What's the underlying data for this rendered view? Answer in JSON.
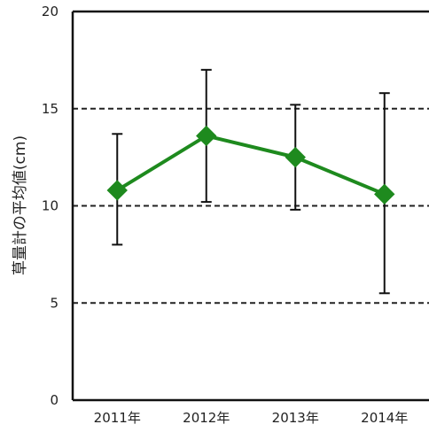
{
  "chart_data": {
    "type": "line",
    "title": "",
    "ylabel": "草量計の平均値(cm)",
    "xlabel": "",
    "categories": [
      "2011年",
      "2012年",
      "2013年",
      "2014年"
    ],
    "series": [
      {
        "values": [
          10.8,
          13.6,
          12.5,
          10.6
        ],
        "error_low": [
          8.0,
          10.2,
          9.8,
          5.5
        ],
        "error_high": [
          13.7,
          17.0,
          15.2,
          15.8
        ],
        "color": "#1e8a1e",
        "marker": "diamond"
      }
    ],
    "ylim": [
      0,
      20
    ],
    "yticks": [
      "0",
      "5",
      "10",
      "15",
      "20"
    ],
    "gridlines": [
      5,
      10,
      15
    ],
    "grid_style": "dashed",
    "legend": "none"
  }
}
